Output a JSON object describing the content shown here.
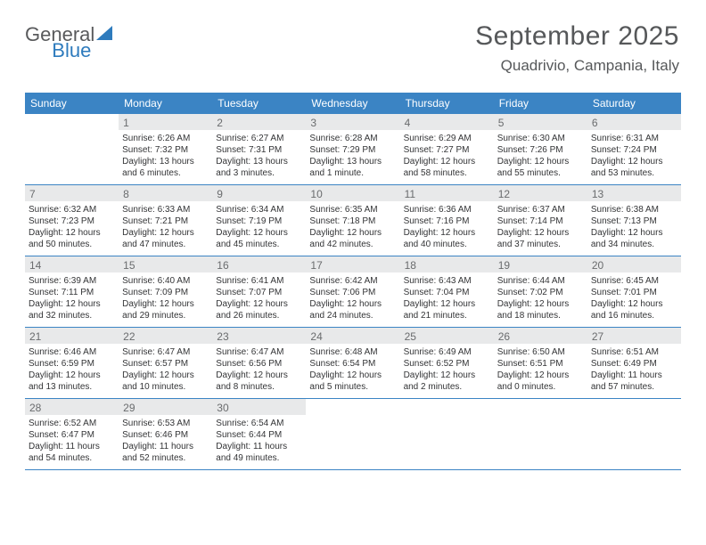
{
  "logo": {
    "part1": "General",
    "part2": "Blue"
  },
  "header": {
    "title": "September 2025",
    "subtitle": "Quadrivio, Campania, Italy"
  },
  "colors": {
    "header_bg": "#3b84c4",
    "header_text": "#ffffff",
    "daynum_bg": "#e8e9ea",
    "daynum_text": "#6a6c6e",
    "detail_text": "#333436",
    "title_text": "#56585a",
    "logo_gray": "#595a5c",
    "logo_blue": "#2e7bbd"
  },
  "dayNames": [
    "Sunday",
    "Monday",
    "Tuesday",
    "Wednesday",
    "Thursday",
    "Friday",
    "Saturday"
  ],
  "weeks": [
    [
      {
        "n": "",
        "sunrise": "",
        "sunset": "",
        "daylight": ""
      },
      {
        "n": "1",
        "sunrise": "Sunrise: 6:26 AM",
        "sunset": "Sunset: 7:32 PM",
        "daylight": "Daylight: 13 hours and 6 minutes."
      },
      {
        "n": "2",
        "sunrise": "Sunrise: 6:27 AM",
        "sunset": "Sunset: 7:31 PM",
        "daylight": "Daylight: 13 hours and 3 minutes."
      },
      {
        "n": "3",
        "sunrise": "Sunrise: 6:28 AM",
        "sunset": "Sunset: 7:29 PM",
        "daylight": "Daylight: 13 hours and 1 minute."
      },
      {
        "n": "4",
        "sunrise": "Sunrise: 6:29 AM",
        "sunset": "Sunset: 7:27 PM",
        "daylight": "Daylight: 12 hours and 58 minutes."
      },
      {
        "n": "5",
        "sunrise": "Sunrise: 6:30 AM",
        "sunset": "Sunset: 7:26 PM",
        "daylight": "Daylight: 12 hours and 55 minutes."
      },
      {
        "n": "6",
        "sunrise": "Sunrise: 6:31 AM",
        "sunset": "Sunset: 7:24 PM",
        "daylight": "Daylight: 12 hours and 53 minutes."
      }
    ],
    [
      {
        "n": "7",
        "sunrise": "Sunrise: 6:32 AM",
        "sunset": "Sunset: 7:23 PM",
        "daylight": "Daylight: 12 hours and 50 minutes."
      },
      {
        "n": "8",
        "sunrise": "Sunrise: 6:33 AM",
        "sunset": "Sunset: 7:21 PM",
        "daylight": "Daylight: 12 hours and 47 minutes."
      },
      {
        "n": "9",
        "sunrise": "Sunrise: 6:34 AM",
        "sunset": "Sunset: 7:19 PM",
        "daylight": "Daylight: 12 hours and 45 minutes."
      },
      {
        "n": "10",
        "sunrise": "Sunrise: 6:35 AM",
        "sunset": "Sunset: 7:18 PM",
        "daylight": "Daylight: 12 hours and 42 minutes."
      },
      {
        "n": "11",
        "sunrise": "Sunrise: 6:36 AM",
        "sunset": "Sunset: 7:16 PM",
        "daylight": "Daylight: 12 hours and 40 minutes."
      },
      {
        "n": "12",
        "sunrise": "Sunrise: 6:37 AM",
        "sunset": "Sunset: 7:14 PM",
        "daylight": "Daylight: 12 hours and 37 minutes."
      },
      {
        "n": "13",
        "sunrise": "Sunrise: 6:38 AM",
        "sunset": "Sunset: 7:13 PM",
        "daylight": "Daylight: 12 hours and 34 minutes."
      }
    ],
    [
      {
        "n": "14",
        "sunrise": "Sunrise: 6:39 AM",
        "sunset": "Sunset: 7:11 PM",
        "daylight": "Daylight: 12 hours and 32 minutes."
      },
      {
        "n": "15",
        "sunrise": "Sunrise: 6:40 AM",
        "sunset": "Sunset: 7:09 PM",
        "daylight": "Daylight: 12 hours and 29 minutes."
      },
      {
        "n": "16",
        "sunrise": "Sunrise: 6:41 AM",
        "sunset": "Sunset: 7:07 PM",
        "daylight": "Daylight: 12 hours and 26 minutes."
      },
      {
        "n": "17",
        "sunrise": "Sunrise: 6:42 AM",
        "sunset": "Sunset: 7:06 PM",
        "daylight": "Daylight: 12 hours and 24 minutes."
      },
      {
        "n": "18",
        "sunrise": "Sunrise: 6:43 AM",
        "sunset": "Sunset: 7:04 PM",
        "daylight": "Daylight: 12 hours and 21 minutes."
      },
      {
        "n": "19",
        "sunrise": "Sunrise: 6:44 AM",
        "sunset": "Sunset: 7:02 PM",
        "daylight": "Daylight: 12 hours and 18 minutes."
      },
      {
        "n": "20",
        "sunrise": "Sunrise: 6:45 AM",
        "sunset": "Sunset: 7:01 PM",
        "daylight": "Daylight: 12 hours and 16 minutes."
      }
    ],
    [
      {
        "n": "21",
        "sunrise": "Sunrise: 6:46 AM",
        "sunset": "Sunset: 6:59 PM",
        "daylight": "Daylight: 12 hours and 13 minutes."
      },
      {
        "n": "22",
        "sunrise": "Sunrise: 6:47 AM",
        "sunset": "Sunset: 6:57 PM",
        "daylight": "Daylight: 12 hours and 10 minutes."
      },
      {
        "n": "23",
        "sunrise": "Sunrise: 6:47 AM",
        "sunset": "Sunset: 6:56 PM",
        "daylight": "Daylight: 12 hours and 8 minutes."
      },
      {
        "n": "24",
        "sunrise": "Sunrise: 6:48 AM",
        "sunset": "Sunset: 6:54 PM",
        "daylight": "Daylight: 12 hours and 5 minutes."
      },
      {
        "n": "25",
        "sunrise": "Sunrise: 6:49 AM",
        "sunset": "Sunset: 6:52 PM",
        "daylight": "Daylight: 12 hours and 2 minutes."
      },
      {
        "n": "26",
        "sunrise": "Sunrise: 6:50 AM",
        "sunset": "Sunset: 6:51 PM",
        "daylight": "Daylight: 12 hours and 0 minutes."
      },
      {
        "n": "27",
        "sunrise": "Sunrise: 6:51 AM",
        "sunset": "Sunset: 6:49 PM",
        "daylight": "Daylight: 11 hours and 57 minutes."
      }
    ],
    [
      {
        "n": "28",
        "sunrise": "Sunrise: 6:52 AM",
        "sunset": "Sunset: 6:47 PM",
        "daylight": "Daylight: 11 hours and 54 minutes."
      },
      {
        "n": "29",
        "sunrise": "Sunrise: 6:53 AM",
        "sunset": "Sunset: 6:46 PM",
        "daylight": "Daylight: 11 hours and 52 minutes."
      },
      {
        "n": "30",
        "sunrise": "Sunrise: 6:54 AM",
        "sunset": "Sunset: 6:44 PM",
        "daylight": "Daylight: 11 hours and 49 minutes."
      },
      {
        "n": "",
        "sunrise": "",
        "sunset": "",
        "daylight": ""
      },
      {
        "n": "",
        "sunrise": "",
        "sunset": "",
        "daylight": ""
      },
      {
        "n": "",
        "sunrise": "",
        "sunset": "",
        "daylight": ""
      },
      {
        "n": "",
        "sunrise": "",
        "sunset": "",
        "daylight": ""
      }
    ]
  ]
}
